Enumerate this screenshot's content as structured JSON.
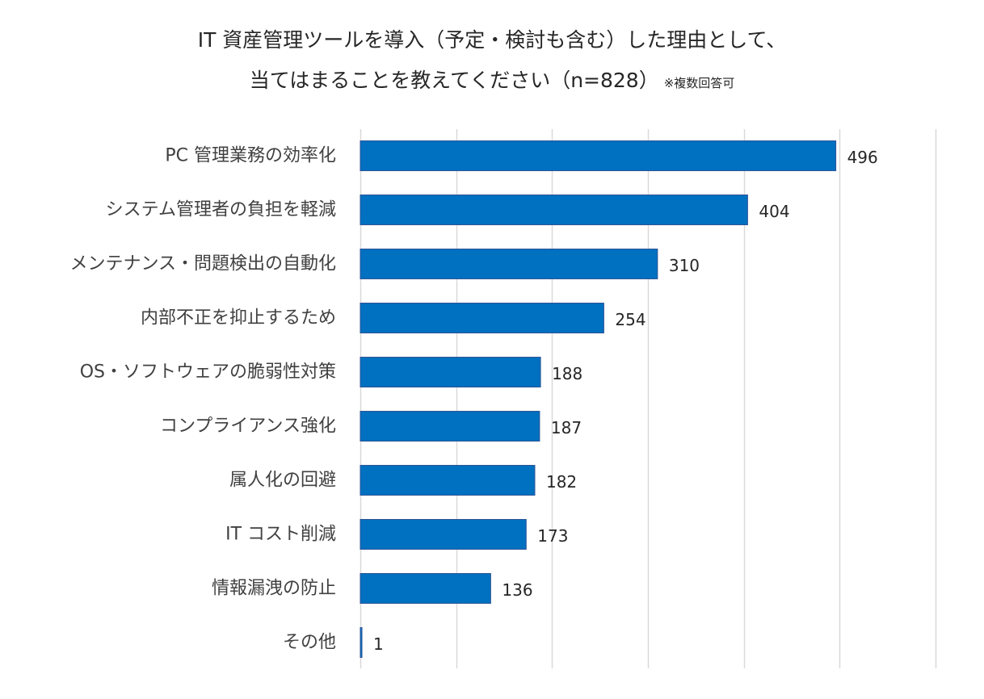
{
  "chart_data": {
    "type": "bar",
    "orientation": "horizontal",
    "title_line1": "IT 資産管理ツールを導入（予定・検討も含む）した理由として、",
    "title_line2": "当てはまることを教えてください（n=828）",
    "title_note": "※複数回答可",
    "categories": [
      "PC 管理業務の効率化",
      "システム管理者の負担を軽減",
      "メンテナンス・問題検出の自動化",
      "内部不正を抑止するため",
      "OS・ソフトウェアの脆弱性対策",
      "コンプライアンス強化",
      "属人化の回避",
      "IT コスト削減",
      "情報漏洩の防止",
      "その他"
    ],
    "values": [
      496,
      404,
      310,
      254,
      188,
      187,
      182,
      173,
      136,
      1
    ],
    "xlim": [
      0,
      600
    ],
    "gridline_step": 100,
    "bar_color": "#0070C0",
    "bar_edge_color": "#2F5597",
    "grid_color": "#D9D9D9"
  }
}
